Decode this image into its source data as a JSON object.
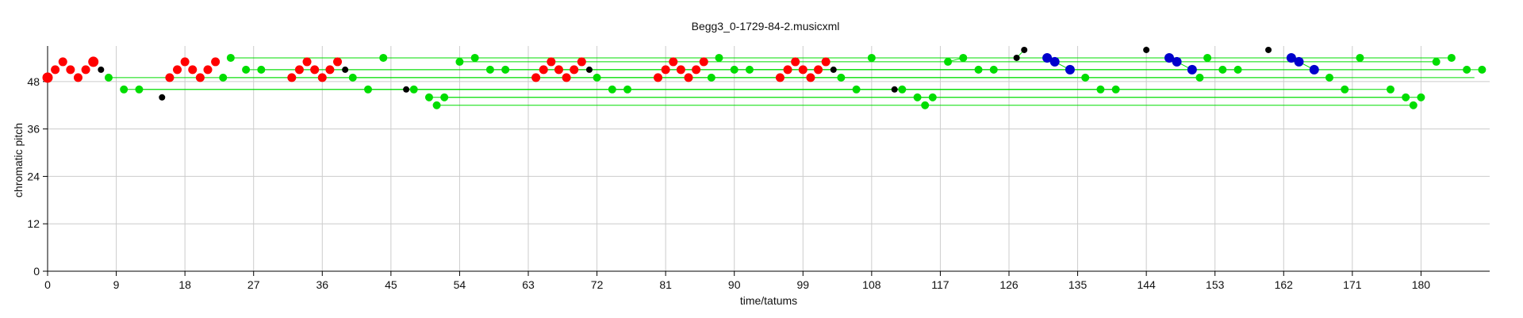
{
  "chart_data": {
    "type": "scatter",
    "title": "Begg3_0-1729-84-2.musicxml",
    "xlabel": "time/tatums",
    "ylabel": "chromatic pitch",
    "xlim": [
      0,
      189
    ],
    "ylim": [
      0,
      57
    ],
    "xticks": [
      0,
      9,
      18,
      27,
      36,
      45,
      54,
      63,
      72,
      81,
      90,
      99,
      108,
      117,
      126,
      135,
      144,
      153,
      162,
      171,
      180
    ],
    "yticks": [
      0,
      12,
      24,
      36,
      48
    ],
    "grid": true,
    "colors": {
      "red": "#ff0000",
      "green": "#00dd00",
      "black": "#000000",
      "blue": "#0000cc",
      "grid": "#cccccc",
      "link": "#00dd00"
    },
    "series": [
      {
        "color": "red",
        "points": [
          [
            0,
            49
          ],
          [
            1,
            51
          ],
          [
            2,
            53
          ],
          [
            3,
            51
          ],
          [
            4,
            49
          ],
          [
            5,
            51
          ],
          [
            6,
            53
          ],
          [
            16,
            49
          ],
          [
            17,
            51
          ],
          [
            18,
            53
          ],
          [
            19,
            51
          ],
          [
            20,
            49
          ],
          [
            21,
            51
          ],
          [
            22,
            53
          ],
          [
            32,
            49
          ],
          [
            33,
            51
          ],
          [
            34,
            53
          ],
          [
            35,
            51
          ],
          [
            36,
            49
          ],
          [
            37,
            51
          ],
          [
            38,
            53
          ],
          [
            64,
            49
          ],
          [
            65,
            51
          ],
          [
            66,
            53
          ],
          [
            67,
            51
          ],
          [
            68,
            49
          ],
          [
            69,
            51
          ],
          [
            70,
            53
          ],
          [
            80,
            49
          ],
          [
            81,
            51
          ],
          [
            82,
            53
          ],
          [
            83,
            51
          ],
          [
            84,
            49
          ],
          [
            85,
            51
          ],
          [
            86,
            53
          ],
          [
            96,
            49
          ],
          [
            97,
            51
          ],
          [
            98,
            53
          ],
          [
            99,
            51
          ],
          [
            100,
            49
          ],
          [
            101,
            51
          ],
          [
            102,
            53
          ]
        ]
      },
      {
        "color": "green",
        "points": [
          [
            8,
            49
          ],
          [
            10,
            46
          ],
          [
            12,
            46
          ],
          [
            23,
            49
          ],
          [
            24,
            54
          ],
          [
            26,
            51
          ],
          [
            28,
            51
          ],
          [
            40,
            49
          ],
          [
            42,
            46
          ],
          [
            44,
            54
          ],
          [
            48,
            46
          ],
          [
            50,
            44
          ],
          [
            51,
            42
          ],
          [
            52,
            44
          ],
          [
            54,
            53
          ],
          [
            56,
            54
          ],
          [
            58,
            51
          ],
          [
            60,
            51
          ],
          [
            72,
            49
          ],
          [
            74,
            46
          ],
          [
            76,
            46
          ],
          [
            87,
            49
          ],
          [
            88,
            54
          ],
          [
            90,
            51
          ],
          [
            92,
            51
          ],
          [
            104,
            49
          ],
          [
            106,
            46
          ],
          [
            108,
            54
          ],
          [
            112,
            46
          ],
          [
            114,
            44
          ],
          [
            115,
            42
          ],
          [
            116,
            44
          ],
          [
            118,
            53
          ],
          [
            120,
            54
          ],
          [
            122,
            51
          ],
          [
            124,
            51
          ],
          [
            136,
            49
          ],
          [
            138,
            46
          ],
          [
            140,
            46
          ],
          [
            151,
            49
          ],
          [
            152,
            54
          ],
          [
            154,
            51
          ],
          [
            156,
            51
          ],
          [
            168,
            49
          ],
          [
            170,
            46
          ],
          [
            172,
            54
          ],
          [
            176,
            46
          ],
          [
            178,
            44
          ],
          [
            179,
            42
          ],
          [
            180,
            44
          ],
          [
            182,
            53
          ],
          [
            184,
            54
          ],
          [
            186,
            51
          ],
          [
            188,
            51
          ]
        ]
      },
      {
        "color": "black",
        "points": [
          [
            7,
            51
          ],
          [
            15,
            44
          ],
          [
            39,
            51
          ],
          [
            47,
            46
          ],
          [
            71,
            51
          ],
          [
            103,
            51
          ],
          [
            111,
            46
          ],
          [
            127,
            54
          ],
          [
            128,
            56
          ],
          [
            144,
            56
          ],
          [
            160,
            56
          ]
        ]
      },
      {
        "color": "blue",
        "points": [
          [
            131,
            54
          ],
          [
            132,
            53
          ],
          [
            134,
            51
          ],
          [
            147,
            54
          ],
          [
            148,
            53
          ],
          [
            150,
            51
          ],
          [
            163,
            54
          ],
          [
            164,
            53
          ],
          [
            166,
            51
          ]
        ]
      }
    ],
    "links": [
      [
        8,
        49,
        136,
        49
      ],
      [
        10,
        46,
        170,
        46
      ],
      [
        12,
        46,
        176,
        46
      ],
      [
        23,
        49,
        151,
        49
      ],
      [
        24,
        54,
        184,
        54
      ],
      [
        26,
        51,
        156,
        51
      ],
      [
        28,
        51,
        188,
        51
      ],
      [
        40,
        49,
        168,
        49
      ],
      [
        42,
        46,
        138,
        46
      ],
      [
        44,
        54,
        88,
        54
      ],
      [
        48,
        46,
        112,
        46
      ],
      [
        50,
        44,
        180,
        44
      ],
      [
        51,
        42,
        179,
        42
      ],
      [
        52,
        44,
        178,
        44
      ],
      [
        54,
        53,
        182,
        53
      ],
      [
        56,
        54,
        152,
        54
      ],
      [
        58,
        51,
        186,
        51
      ],
      [
        60,
        51,
        154,
        51
      ],
      [
        72,
        49,
        187,
        49
      ],
      [
        74,
        46,
        106,
        46
      ],
      [
        76,
        46,
        140,
        46
      ],
      [
        90,
        51,
        122,
        51
      ],
      [
        92,
        51,
        124,
        51
      ],
      [
        108,
        54,
        172,
        54
      ],
      [
        114,
        44,
        116,
        44
      ],
      [
        118,
        53,
        120,
        54
      ],
      [
        127,
        54,
        128,
        56
      ],
      [
        131,
        54,
        134,
        51
      ],
      [
        147,
        54,
        150,
        51
      ],
      [
        163,
        54,
        166,
        51
      ]
    ]
  }
}
